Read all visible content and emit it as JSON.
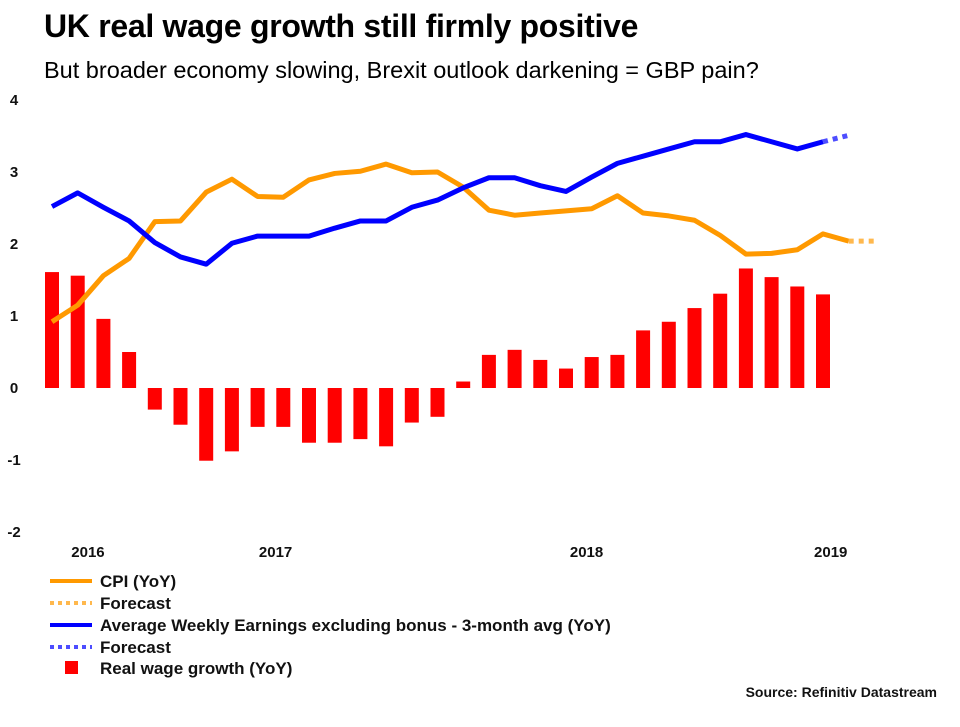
{
  "header": {
    "title": "UK real wage growth still firmly positive",
    "subtitle": "But broader economy slowing, Brexit outlook darkening = GBP pain?"
  },
  "source": "Source: Refinitiv Datastream",
  "colors": {
    "cpi": "#FF9900",
    "cpi_forecast": "#FFB84D",
    "awe": "#0000FF",
    "awe_forecast": "#4D4DFF",
    "real_wage": "#FF0000"
  },
  "chart_data": {
    "type": "bar+line",
    "title": "UK real wage growth still firmly positive",
    "subtitle": "But broader economy slowing, Brexit outlook darkening = GBP pain?",
    "xlabel": "",
    "ylabel": "",
    "ylim": [
      -2,
      4
    ],
    "yticks": [
      4,
      3,
      2,
      1,
      0,
      -1,
      -2
    ],
    "grid": false,
    "legend_position": "bottom-left",
    "n_periods": 33,
    "year_labels": [
      {
        "label": "2016",
        "index": 1.4
      },
      {
        "label": "2017",
        "index": 8.7
      },
      {
        "label": "2018",
        "index": 20.8
      },
      {
        "label": "2019",
        "index": 30.3
      }
    ],
    "series": [
      {
        "name": "CPI (YoY)",
        "type": "line",
        "color_key": "cpi",
        "values": [
          0.92,
          1.15,
          1.56,
          1.8,
          2.31,
          2.32,
          2.72,
          2.9,
          2.66,
          2.65,
          2.89,
          2.98,
          3.01,
          3.11,
          2.99,
          3.0,
          2.79,
          2.47,
          2.4,
          2.43,
          2.46,
          2.49,
          2.67,
          2.43,
          2.39,
          2.33,
          2.12,
          1.86,
          1.87,
          1.92,
          2.14,
          2.04
        ],
        "forecast_label": "Forecast",
        "forecast_values": [
          2.04
        ]
      },
      {
        "name": "Average Weekly Earnings excluding bonus - 3-month avg (YoY)",
        "type": "line",
        "color_key": "awe",
        "values": [
          2.52,
          2.71,
          2.51,
          2.32,
          2.02,
          1.82,
          1.72,
          2.01,
          2.11,
          2.11,
          2.11,
          2.22,
          2.32,
          2.32,
          2.51,
          2.61,
          2.78,
          2.92,
          2.92,
          2.81,
          2.73,
          2.93,
          3.12,
          3.22,
          3.32,
          3.42,
          3.42,
          3.52,
          3.42,
          3.32,
          3.42
        ],
        "forecast_label": "Forecast",
        "forecast_values": [
          3.51
        ]
      },
      {
        "name": "Real wage growth (YoY)",
        "type": "bar",
        "color_key": "real_wage",
        "values": [
          1.61,
          1.56,
          0.96,
          0.5,
          -0.3,
          -0.51,
          -1.01,
          -0.88,
          -0.54,
          -0.54,
          -0.76,
          -0.76,
          -0.71,
          -0.81,
          -0.48,
          -0.4,
          0.09,
          0.46,
          0.53,
          0.39,
          0.27,
          0.43,
          0.46,
          0.8,
          0.92,
          1.11,
          1.31,
          1.66,
          1.54,
          1.41,
          1.3
        ]
      }
    ],
    "legend": [
      {
        "label": "CPI (YoY)",
        "style": "solid",
        "color_key": "cpi"
      },
      {
        "label": "Forecast",
        "style": "dotted",
        "color_key": "cpi_forecast"
      },
      {
        "label": "Average Weekly Earnings excluding bonus - 3-month avg (YoY)",
        "style": "solid",
        "color_key": "awe"
      },
      {
        "label": "Forecast",
        "style": "dotted",
        "color_key": "awe_forecast"
      },
      {
        "label": "Real wage growth (YoY)",
        "style": "square",
        "color_key": "real_wage"
      }
    ]
  }
}
